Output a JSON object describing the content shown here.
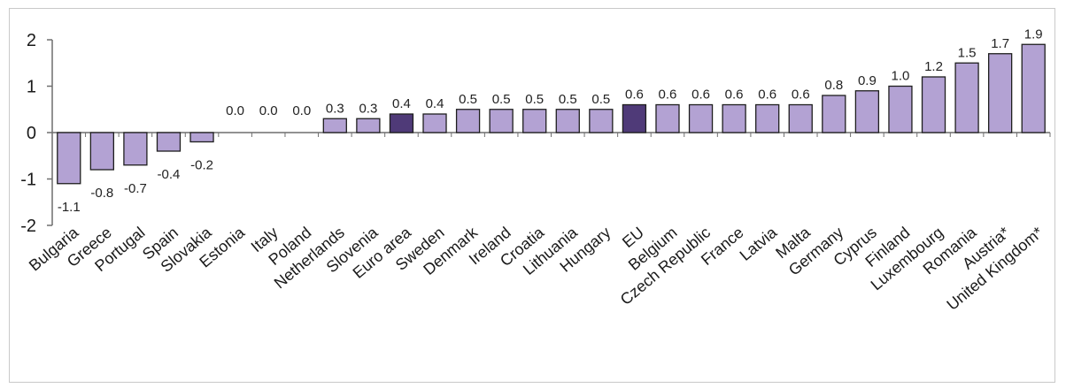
{
  "chart_data": {
    "type": "bar",
    "title": "",
    "xlabel": "",
    "ylabel": "",
    "ylim": [
      -2,
      2
    ],
    "yticks": [
      "2",
      "1",
      "0",
      "-1",
      "-2"
    ],
    "grid": false,
    "legend": "none",
    "categories": [
      "Bulgaria",
      "Greece",
      "Portugal",
      "Spain",
      "Slovakia",
      "Estonia",
      "Italy",
      "Poland",
      "Netherlands",
      "Slovenia",
      "Euro area",
      "Sweden",
      "Denmark",
      "Ireland",
      "Croatia",
      "Lithuania",
      "Hungary",
      "EU",
      "Belgium",
      "Czech Republic",
      "France",
      "Latvia",
      "Malta",
      "Germany",
      "Cyprus",
      "Finland",
      "Luxembourg",
      "Romania",
      "Austria*",
      "United Kingdom*"
    ],
    "values": [
      -1.1,
      -0.8,
      -0.7,
      -0.4,
      -0.2,
      0.0,
      0.0,
      0.0,
      0.3,
      0.3,
      0.4,
      0.4,
      0.5,
      0.5,
      0.5,
      0.5,
      0.5,
      0.6,
      0.6,
      0.6,
      0.6,
      0.6,
      0.6,
      0.8,
      0.9,
      1.0,
      1.2,
      1.5,
      1.7,
      1.9
    ],
    "value_labels": [
      "-1.1",
      "-0.8",
      "-0.7",
      "-0.4",
      "-0.2",
      "0.0",
      "0.0",
      "0.0",
      "0.3",
      "0.3",
      "0.4",
      "0.4",
      "0.5",
      "0.5",
      "0.5",
      "0.5",
      "0.5",
      "0.6",
      "0.6",
      "0.6",
      "0.6",
      "0.6",
      "0.6",
      "0.8",
      "0.9",
      "1.0",
      "1.2",
      "1.5",
      "1.7",
      "1.9"
    ],
    "highlighted": [
      "Euro area",
      "EU"
    ],
    "colors": {
      "bar": "#b3a2d3",
      "highlight": "#4f3a78",
      "outline": "#1e1e1e",
      "axis": "#6f6f6f"
    }
  }
}
